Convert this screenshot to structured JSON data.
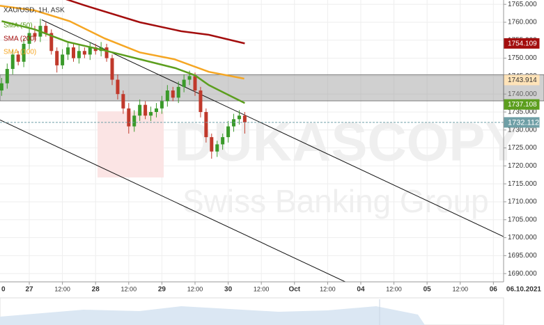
{
  "chart_data": {
    "type": "candlestick",
    "title": "XAU/USD, 1H, ASK",
    "watermark": [
      "DUKASCOPY",
      "Swiss Banking Group"
    ],
    "xlim": [
      -10.6,
      171.7
    ],
    "ylim": [
      1687.7,
      1766.2
    ],
    "grid": true,
    "xticks": [
      {
        "value": -12,
        "label": "0"
      },
      {
        "value": 0,
        "label": "27"
      },
      {
        "value": 12,
        "label": "12:00"
      },
      {
        "value": 24,
        "label": "28"
      },
      {
        "value": 36,
        "label": "12:00"
      },
      {
        "value": 48,
        "label": "29"
      },
      {
        "value": 60,
        "label": "12:00"
      },
      {
        "value": 72,
        "label": "30"
      },
      {
        "value": 84,
        "label": "12:00"
      },
      {
        "value": 96,
        "label": "Oct"
      },
      {
        "value": 108,
        "label": "12:00"
      },
      {
        "value": 120,
        "label": "04"
      },
      {
        "value": 132,
        "label": "12:00"
      },
      {
        "value": 144,
        "label": "05"
      },
      {
        "value": 156,
        "label": "12:00"
      },
      {
        "value": 168,
        "label": "06"
      },
      {
        "value": 179,
        "label": "06.10.2021"
      }
    ],
    "yticks": [
      {
        "value": 1765,
        "label": "1765.000"
      },
      {
        "value": 1760,
        "label": "1760.000"
      },
      {
        "value": 1755,
        "label": "1755.000"
      },
      {
        "value": 1750,
        "label": "1750.000"
      },
      {
        "value": 1745,
        "label": "1745.000"
      },
      {
        "value": 1740,
        "label": "1740.000"
      },
      {
        "value": 1735,
        "label": "1735.000"
      },
      {
        "value": 1730,
        "label": "1730.000"
      },
      {
        "value": 1725,
        "label": "1725.000"
      },
      {
        "value": 1720,
        "label": "1720.000"
      },
      {
        "value": 1715,
        "label": "1715.000"
      },
      {
        "value": 1710,
        "label": "1710.000"
      },
      {
        "value": 1705,
        "label": "1705.000"
      },
      {
        "value": 1700,
        "label": "1700.000"
      },
      {
        "value": 1695,
        "label": "1695.000"
      },
      {
        "value": 1690,
        "label": "1690.000"
      }
    ],
    "candles": {
      "up_color": "#3a9a2a",
      "down_color": "#c0392b",
      "x": [
        -10,
        -8,
        -6,
        -4,
        -2,
        0,
        2,
        4,
        6,
        8,
        10,
        12,
        14,
        16,
        18,
        20,
        22,
        24,
        26,
        28,
        30,
        32,
        34,
        36,
        38,
        40,
        42,
        44,
        46,
        48,
        50,
        52,
        54,
        56,
        58,
        60,
        62,
        64,
        66,
        68,
        70,
        72,
        74,
        76,
        78
      ],
      "open": [
        1741,
        1743,
        1747,
        1751,
        1749,
        1754,
        1757,
        1756,
        1759,
        1757,
        1752,
        1748,
        1751,
        1753,
        1750,
        1752,
        1751,
        1753,
        1752,
        1753,
        1750,
        1744,
        1740,
        1736,
        1731,
        1734,
        1737,
        1734,
        1735,
        1736,
        1738,
        1741,
        1739,
        1742,
        1744,
        1745,
        1741,
        1735,
        1728,
        1724,
        1726,
        1728,
        1731,
        1733,
        1734
      ],
      "high": [
        1744.5,
        1748.5,
        1752.5,
        1752,
        1755.5,
        1758.5,
        1759,
        1761,
        1760,
        1758,
        1753,
        1752.5,
        1754.5,
        1754,
        1753.5,
        1753,
        1754.5,
        1754,
        1754.5,
        1754,
        1751,
        1745.5,
        1741,
        1737.5,
        1735.5,
        1738.5,
        1738,
        1736.5,
        1737.5,
        1739.5,
        1742.5,
        1742,
        1743.5,
        1745.5,
        1746.5,
        1746,
        1742,
        1736,
        1729,
        1727,
        1729,
        1732.5,
        1734.5,
        1735.5,
        1735
      ],
      "low": [
        1739.5,
        1741.5,
        1745.5,
        1748,
        1747.5,
        1752.5,
        1755,
        1754.5,
        1756,
        1751,
        1746,
        1747,
        1749.5,
        1749,
        1748.5,
        1750,
        1749.5,
        1751,
        1750.5,
        1749,
        1742.5,
        1738.5,
        1734.5,
        1729,
        1729.5,
        1732.5,
        1733,
        1732.5,
        1733.5,
        1734.5,
        1736.5,
        1738,
        1737.5,
        1740.5,
        1742.5,
        1739.5,
        1733.5,
        1726.5,
        1722,
        1722.5,
        1724.5,
        1726.5,
        1729.5,
        1731.5,
        1729
      ],
      "close": [
        1743,
        1747,
        1751,
        1749,
        1754,
        1757,
        1756,
        1759,
        1757,
        1752,
        1748,
        1751,
        1753,
        1750,
        1752,
        1751,
        1753,
        1752,
        1753,
        1750,
        1744,
        1740,
        1736,
        1731,
        1734,
        1737,
        1734,
        1735,
        1736,
        1738,
        1741,
        1739,
        1742,
        1744,
        1745,
        1741,
        1735,
        1728,
        1724,
        1726,
        1728,
        1731,
        1733,
        1734,
        1732.112
      ]
    },
    "series": [
      {
        "name": "SMA (50)",
        "color": "#5c9e1e",
        "x": [
          -10,
          2,
          14,
          27,
          40,
          53,
          60,
          65,
          73,
          78
        ],
        "values": [
          1760.3,
          1758,
          1754.5,
          1752.2,
          1749.7,
          1747.2,
          1745.2,
          1742.5,
          1739.4,
          1737.5
        ]
      },
      {
        "name": "SMA (200)",
        "color": "#a30d0d",
        "x": [
          -10,
          13,
          20,
          40,
          55,
          65,
          78
        ],
        "values": [
          1770,
          1766.5,
          1764.7,
          1760,
          1757.5,
          1756.5,
          1754.1
        ]
      },
      {
        "name": "SMA (100)",
        "color": "#f5a623",
        "x": [
          -10.6,
          2,
          14.6,
          27.3,
          40,
          52.5,
          65,
          77.8
        ],
        "values": [
          1764.6,
          1763.3,
          1760.3,
          1755.5,
          1751.6,
          1749.7,
          1746.2,
          1744.3
        ]
      }
    ],
    "zone": [
      1738.1,
      1745.4
    ],
    "trend_lines": [
      {
        "x": [
          4.5,
          171.7
        ],
        "values": [
          1760.7,
          1700.3
        ]
      },
      {
        "x": [
          -10.6,
          114.4
        ],
        "values": [
          1732.8,
          1687.7
        ]
      }
    ],
    "price_tags": [
      {
        "value": 1754.109,
        "color": "#a30d0d",
        "text_color": "#ffffff"
      },
      {
        "value": 1743.914,
        "color": "#ffe3b8",
        "text_color": "#333333"
      },
      {
        "value": 1737.108,
        "color": "#5c9e1e",
        "text_color": "#ffffff"
      },
      {
        "value": 1732.112,
        "color": "#6f9fa6",
        "text_color": "#ffffff"
      }
    ]
  }
}
